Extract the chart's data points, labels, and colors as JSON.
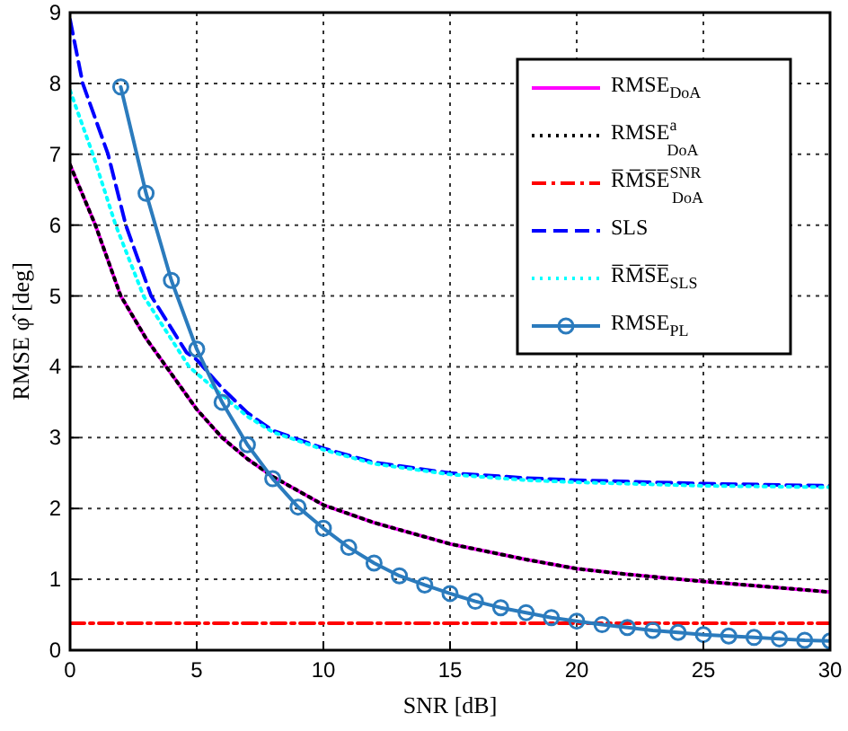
{
  "chart_data": {
    "type": "line",
    "xlabel": "SNR [dB]",
    "ylabel": "RMSE φ̂ [deg]",
    "xlim": [
      0,
      30
    ],
    "ylim": [
      0,
      9
    ],
    "xticks": [
      0,
      5,
      10,
      15,
      20,
      25,
      30
    ],
    "yticks": [
      0,
      1,
      2,
      3,
      4,
      5,
      6,
      7,
      8,
      9
    ],
    "grid": true,
    "legend": "top right",
    "series": [
      {
        "name": "RMSE$_{DoA}$",
        "color": "#ff00ff",
        "line_style": "solid",
        "marker": "none",
        "x": [
          0,
          1,
          2,
          3,
          4,
          5,
          6,
          7,
          8,
          10,
          12,
          15,
          18,
          20,
          22,
          25,
          28,
          30
        ],
        "values": [
          6.85,
          6.0,
          5.0,
          4.4,
          3.9,
          3.4,
          3.0,
          2.7,
          2.45,
          2.05,
          1.8,
          1.5,
          1.28,
          1.15,
          1.07,
          0.97,
          0.88,
          0.82
        ]
      },
      {
        "name": "RMSE$^{a}$$_{DoA}$",
        "color": "#000000",
        "line_style": "dotted",
        "marker": "none",
        "x": [
          0,
          1,
          2,
          3,
          4,
          5,
          6,
          7,
          8,
          10,
          12,
          15,
          18,
          20,
          22,
          25,
          28,
          30
        ],
        "values": [
          6.85,
          6.0,
          5.0,
          4.4,
          3.9,
          3.4,
          3.0,
          2.7,
          2.45,
          2.05,
          1.8,
          1.5,
          1.28,
          1.15,
          1.07,
          0.97,
          0.88,
          0.82
        ]
      },
      {
        "name": "R̅M̅S̅E̅$^{SNR}$$_{DoA}$",
        "color": "#ff0000",
        "line_style": "dashdot",
        "marker": "none",
        "x": [
          0,
          30
        ],
        "values": [
          0.38,
          0.38
        ]
      },
      {
        "name": "SLS",
        "color": "#0000ff",
        "line_style": "dashed",
        "marker": "none",
        "x": [
          0,
          0.5,
          1.5,
          2.2,
          3.2,
          4.6,
          5,
          6,
          7,
          8,
          10,
          12,
          15,
          18,
          20,
          25,
          30
        ],
        "values": [
          8.9,
          8.0,
          7.0,
          6.0,
          5.0,
          4.2,
          4.1,
          3.7,
          3.35,
          3.1,
          2.85,
          2.65,
          2.5,
          2.43,
          2.4,
          2.35,
          2.32
        ]
      },
      {
        "name": "R̅M̅S̅E̅$_{SLS}$",
        "color": "#00ffff",
        "line_style": "dotted",
        "marker": "none",
        "x": [
          0,
          0.9,
          1.8,
          2.9,
          4.7,
          6,
          7,
          8,
          10,
          12,
          15,
          18,
          20,
          25,
          30
        ],
        "values": [
          7.9,
          7.0,
          6.0,
          5.0,
          4.0,
          3.6,
          3.3,
          3.08,
          2.83,
          2.63,
          2.48,
          2.4,
          2.37,
          2.32,
          2.3
        ]
      },
      {
        "name": "RMSE$_{PL}$",
        "color": "#2b7bbd",
        "line_style": "solid",
        "marker": "circle",
        "x": [
          2,
          3,
          4,
          5,
          6,
          7,
          8,
          9,
          10,
          11,
          12,
          13,
          14,
          15,
          16,
          17,
          18,
          19,
          20,
          21,
          22,
          23,
          24,
          25,
          26,
          27,
          28,
          29,
          30
        ],
        "values": [
          7.95,
          6.45,
          5.22,
          4.25,
          3.5,
          2.9,
          2.42,
          2.02,
          1.72,
          1.45,
          1.23,
          1.05,
          0.92,
          0.8,
          0.69,
          0.6,
          0.53,
          0.46,
          0.41,
          0.36,
          0.32,
          0.28,
          0.25,
          0.22,
          0.2,
          0.18,
          0.16,
          0.14,
          0.13
        ]
      }
    ]
  }
}
